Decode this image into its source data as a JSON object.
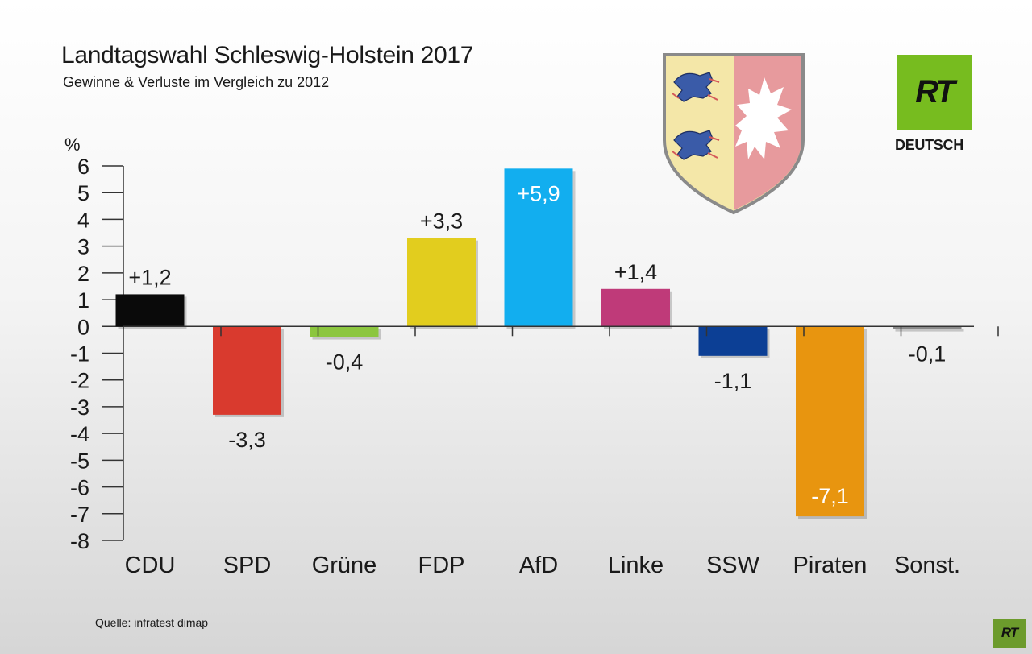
{
  "header": {
    "title": "Landtagswahl Schleswig-Holstein 2017",
    "subtitle": "Gewinne & Verluste im Vergleich zu 2012"
  },
  "footer": {
    "source": "Quelle: infratest dimap"
  },
  "branding": {
    "logo_text": "RT",
    "logo_subtext": "DEUTSCH",
    "logo_color": "#77bc1f"
  },
  "crest": {
    "icon": "schleswig-holstein-coat-of-arms-icon"
  },
  "chart_data": {
    "type": "bar",
    "title": "Landtagswahl Schleswig-Holstein 2017",
    "subtitle": "Gewinne & Verluste im Vergleich zu 2012",
    "ylabel": "%",
    "xlabel": "",
    "ylim": [
      -8,
      6
    ],
    "yticks": [
      6,
      5,
      4,
      3,
      2,
      1,
      0,
      -1,
      -2,
      -3,
      -4,
      -5,
      -6,
      -7,
      -8
    ],
    "ytick_labels": [
      "6",
      "5",
      "4",
      "3",
      "2",
      "1",
      "0",
      "-1",
      "-2",
      "-3",
      "-4",
      "-5",
      "-6",
      "-7",
      "-8"
    ],
    "categories": [
      "CDU",
      "SPD",
      "Grüne",
      "FDP",
      "AfD",
      "Linke",
      "SSW",
      "Piraten",
      "Sonst."
    ],
    "values": [
      1.2,
      -3.3,
      -0.4,
      3.3,
      5.9,
      1.4,
      -1.1,
      -7.1,
      -0.1
    ],
    "value_labels": [
      "+1,2",
      "-3,3",
      "-0,4",
      "+3,3",
      "+5,9",
      "+1,4",
      "-1,1",
      "-7,1",
      "-0,1"
    ],
    "colors": [
      "#0a0a0a",
      "#d93a2e",
      "#8cc63f",
      "#e2cd1e",
      "#12aeef",
      "#bf3a79",
      "#0c3f95",
      "#e8950f",
      "#8a8a8a"
    ],
    "label_inside": [
      false,
      false,
      false,
      false,
      true,
      false,
      false,
      true,
      false
    ]
  }
}
